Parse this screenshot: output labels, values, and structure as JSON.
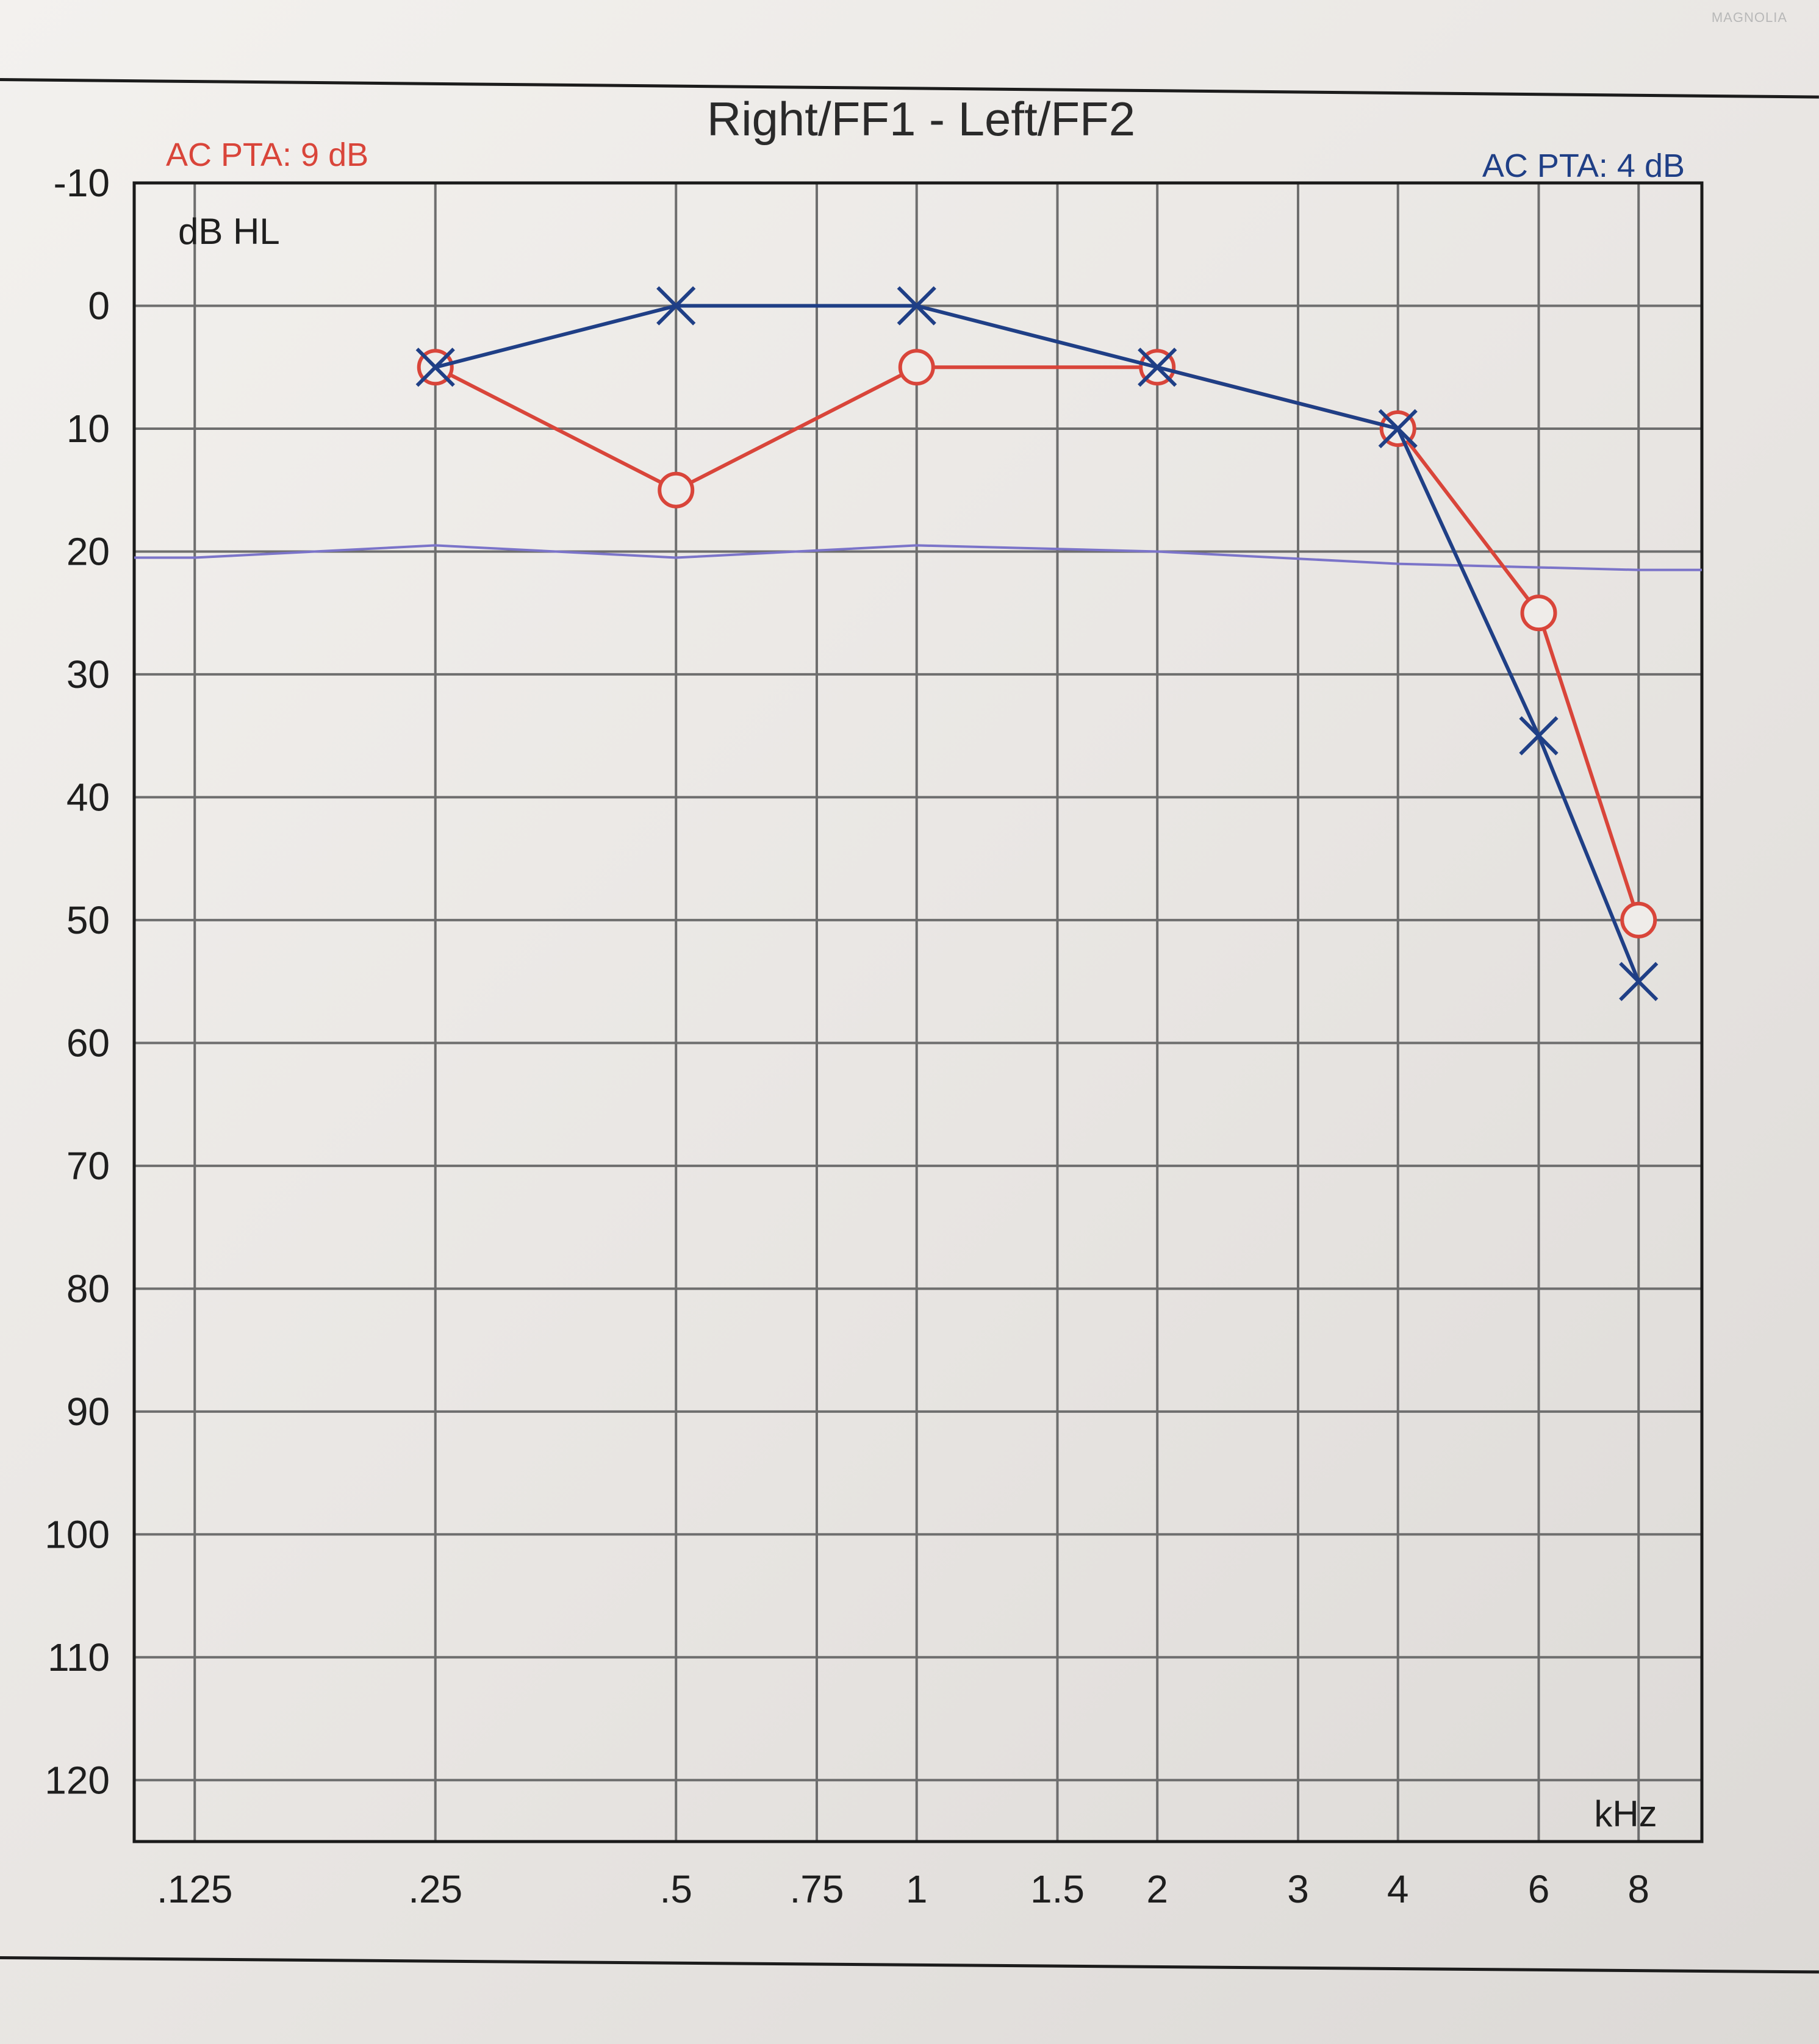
{
  "chart_data": {
    "type": "line",
    "title": "Right/FF1 - Left/FF2",
    "y_unit_label": "dB HL",
    "x_unit_label": "kHz",
    "x_scale": "log",
    "y_inverted": true,
    "ylim": [
      -10,
      125
    ],
    "grid": true,
    "x_ticks": [
      {
        "value": 0.125,
        "label": ".125"
      },
      {
        "value": 0.25,
        "label": ".25"
      },
      {
        "value": 0.5,
        "label": ".5"
      },
      {
        "value": 0.75,
        "label": ".75"
      },
      {
        "value": 1,
        "label": "1"
      },
      {
        "value": 1.5,
        "label": "1.5"
      },
      {
        "value": 2,
        "label": "2"
      },
      {
        "value": 3,
        "label": "3"
      },
      {
        "value": 4,
        "label": "4"
      },
      {
        "value": 6,
        "label": "6"
      },
      {
        "value": 8,
        "label": "8"
      }
    ],
    "y_ticks": [
      {
        "value": -10,
        "label": "-10"
      },
      {
        "value": 0,
        "label": "0"
      },
      {
        "value": 10,
        "label": "10"
      },
      {
        "value": 20,
        "label": "20"
      },
      {
        "value": 30,
        "label": "30"
      },
      {
        "value": 40,
        "label": "40"
      },
      {
        "value": 50,
        "label": "50"
      },
      {
        "value": 60,
        "label": "60"
      },
      {
        "value": 70,
        "label": "70"
      },
      {
        "value": 80,
        "label": "80"
      },
      {
        "value": 90,
        "label": "90"
      },
      {
        "value": 100,
        "label": "100"
      },
      {
        "value": 110,
        "label": "110"
      },
      {
        "value": 120,
        "label": "120"
      }
    ],
    "series": [
      {
        "ear": "right",
        "marker": "circle",
        "color": "#d9453a",
        "pta_label": "AC PTA: 9 dB",
        "points": [
          {
            "x": 0.25,
            "y": 5
          },
          {
            "x": 0.5,
            "y": 15
          },
          {
            "x": 1,
            "y": 5
          },
          {
            "x": 2,
            "y": 5
          },
          {
            "x": 4,
            "y": 10
          },
          {
            "x": 6,
            "y": 25
          },
          {
            "x": 8,
            "y": 50
          }
        ]
      },
      {
        "ear": "left",
        "marker": "cross",
        "color": "#1f3f86",
        "pta_label": "AC PTA: 4 dB",
        "points": [
          {
            "x": 0.25,
            "y": 5
          },
          {
            "x": 0.5,
            "y": 0
          },
          {
            "x": 1,
            "y": 0
          },
          {
            "x": 2,
            "y": 5
          },
          {
            "x": 4,
            "y": 10
          },
          {
            "x": 6,
            "y": 35
          },
          {
            "x": 8,
            "y": 55
          }
        ]
      }
    ],
    "reference_line": {
      "color": "#7b74c9",
      "points": [
        {
          "x": 0.125,
          "y": 20.5
        },
        {
          "x": 0.25,
          "y": 19.5
        },
        {
          "x": 0.5,
          "y": 20.5
        },
        {
          "x": 1,
          "y": 19.5
        },
        {
          "x": 2,
          "y": 20
        },
        {
          "x": 4,
          "y": 21
        },
        {
          "x": 8,
          "y": 21.5
        }
      ]
    }
  },
  "brand": {
    "text": "MAGNOLIA"
  }
}
